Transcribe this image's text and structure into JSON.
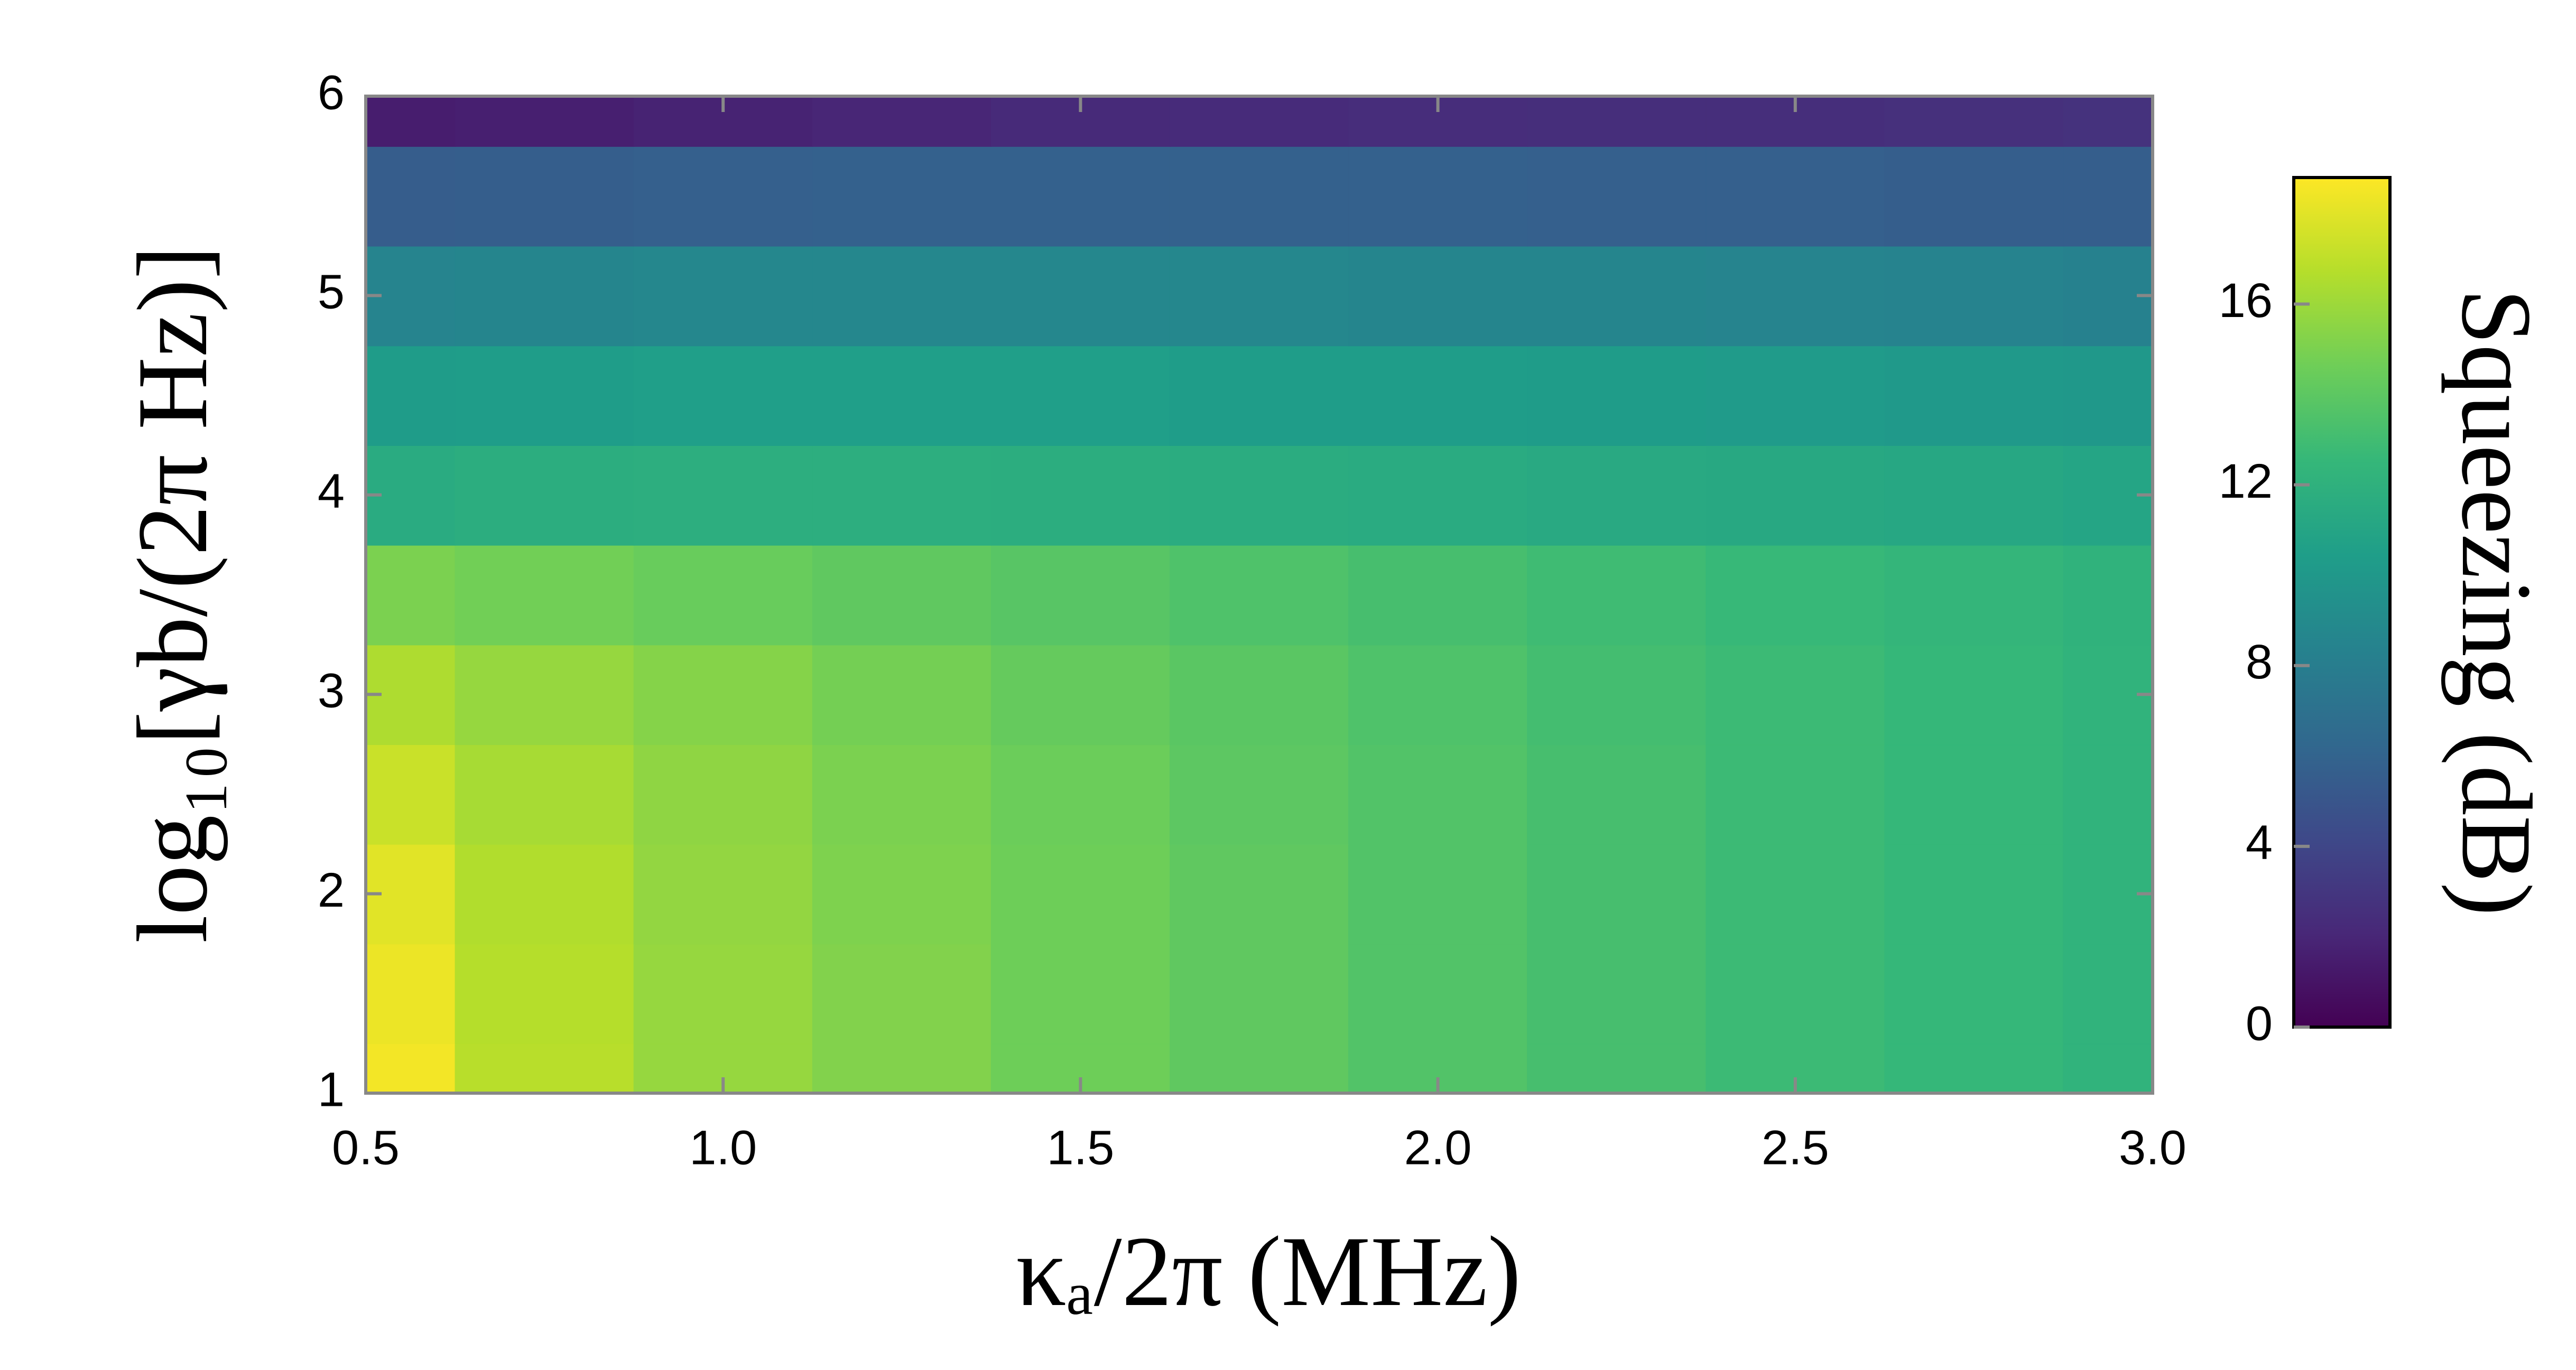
{
  "chart_data": {
    "type": "heatmap",
    "x_label": "κₐ/2π (MHz)",
    "y_label": "log₁₀[γb/(2π Hz)]",
    "colorbar_label": "Squeezing (dB)",
    "colormap": "viridis",
    "x": [
      0.5,
      0.75,
      1.0,
      1.25,
      1.5,
      1.75,
      2.0,
      2.25,
      2.5,
      2.75,
      3.0
    ],
    "y": [
      1,
      1.5,
      2,
      2.5,
      3,
      3.5,
      4,
      4.5,
      5,
      5.5,
      6
    ],
    "z": [
      [
        18.5,
        16.8,
        15.8,
        15.2,
        14.6,
        14.1,
        13.6,
        13.2,
        12.8,
        12.5,
        12.2
      ],
      [
        18.3,
        16.7,
        15.8,
        15.2,
        14.6,
        14.1,
        13.6,
        13.2,
        12.8,
        12.5,
        12.2
      ],
      [
        18.0,
        16.6,
        15.7,
        15.1,
        14.6,
        14.1,
        13.6,
        13.2,
        12.8,
        12.5,
        12.2
      ],
      [
        17.3,
        16.3,
        15.6,
        15.0,
        14.5,
        14.0,
        13.6,
        13.2,
        12.8,
        12.5,
        12.2
      ],
      [
        16.5,
        15.8,
        15.3,
        14.8,
        14.3,
        13.9,
        13.5,
        13.1,
        12.8,
        12.5,
        12.2
      ],
      [
        15.0,
        14.7,
        14.4,
        14.1,
        13.8,
        13.5,
        13.2,
        12.9,
        12.6,
        12.4,
        12.1
      ],
      [
        11.5,
        11.7,
        11.8,
        11.8,
        11.7,
        11.6,
        11.5,
        11.4,
        11.3,
        11.2,
        11.0
      ],
      [
        10.3,
        10.4,
        10.5,
        10.5,
        10.5,
        10.4,
        10.4,
        10.3,
        10.2,
        10.1,
        10.0
      ],
      [
        8.5,
        8.6,
        8.7,
        8.7,
        8.7,
        8.7,
        8.6,
        8.6,
        8.5,
        8.4,
        8.3
      ],
      [
        5.5,
        5.6,
        5.7,
        5.8,
        5.8,
        5.8,
        5.8,
        5.7,
        5.7,
        5.6,
        5.6
      ],
      [
        1.5,
        1.6,
        1.8,
        2.0,
        2.2,
        2.3,
        2.4,
        2.5,
        2.5,
        2.6,
        2.7
      ]
    ],
    "xlim": [
      0.5,
      3.0
    ],
    "xticks": [
      {
        "value": 0.5,
        "label": "0.5"
      },
      {
        "value": 1.0,
        "label": "1.0"
      },
      {
        "value": 1.5,
        "label": "1.5"
      },
      {
        "value": 2.0,
        "label": "2.0"
      },
      {
        "value": 2.5,
        "label": "2.5"
      },
      {
        "value": 3.0,
        "label": "3.0"
      }
    ],
    "ylim": [
      1,
      6
    ],
    "yticks": [
      1,
      2,
      3,
      4,
      5,
      6
    ],
    "clim": [
      0,
      18.8
    ],
    "cticks": [
      0,
      4,
      8,
      12,
      16
    ]
  }
}
